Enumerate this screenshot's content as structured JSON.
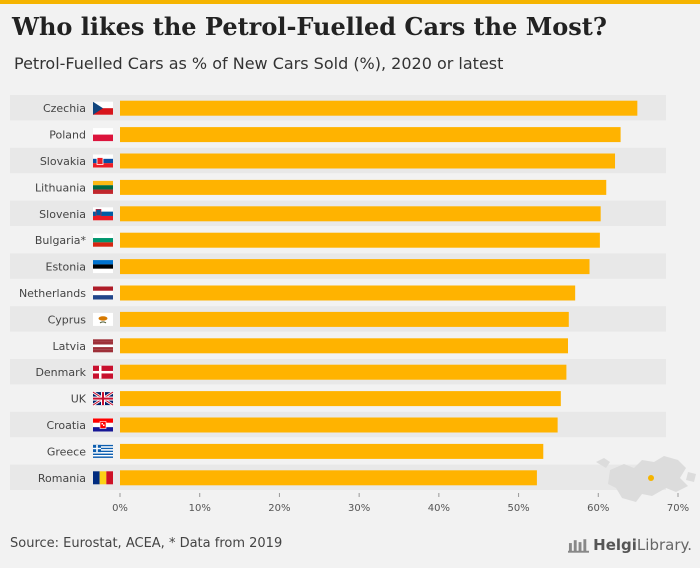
{
  "header": {
    "title": "Who likes the Petrol-Fuelled Cars the Most?",
    "subtitle": "Petrol-Fuelled Cars as % of New Cars Sold (%), 2020 or latest"
  },
  "footer": {
    "source": "Source: Eurostat, ACEA, * Data from 2019",
    "logo_brand": "Helgi",
    "logo_suffix": "Library."
  },
  "colors": {
    "bar": "#ffb300",
    "accent": "#f5b400",
    "text": "#333333"
  },
  "chart_data": {
    "type": "bar",
    "orientation": "horizontal",
    "title": "Who likes the Petrol-Fuelled Cars the Most?",
    "subtitle": "Petrol-Fuelled Cars as % of New Cars Sold (%), 2020 or latest",
    "categories": [
      "Czechia",
      "Poland",
      "Slovakia",
      "Lithuania",
      "Slovenia",
      "Bulgaria*",
      "Estonia",
      "Netherlands",
      "Cyprus",
      "Latvia",
      "Denmark",
      "UK",
      "Croatia",
      "Greece",
      "Romania"
    ],
    "flags": [
      "czechia-flag-icon",
      "poland-flag-icon",
      "slovakia-flag-icon",
      "lithuania-flag-icon",
      "slovenia-flag-icon",
      "bulgaria-flag-icon",
      "estonia-flag-icon",
      "netherlands-flag-icon",
      "cyprus-flag-icon",
      "latvia-flag-icon",
      "denmark-flag-icon",
      "uk-flag-icon",
      "croatia-flag-icon",
      "greece-flag-icon",
      "romania-flag-icon"
    ],
    "values": [
      64.9,
      62.8,
      62.1,
      61.0,
      60.3,
      60.2,
      58.9,
      57.1,
      56.3,
      56.2,
      56.0,
      55.3,
      54.9,
      53.1,
      52.3
    ],
    "xlim": [
      0,
      70
    ],
    "xticks": [
      "0%",
      "10%",
      "20%",
      "30%",
      "40%",
      "50%",
      "60%",
      "70%"
    ],
    "grid": false,
    "legend": "none"
  }
}
